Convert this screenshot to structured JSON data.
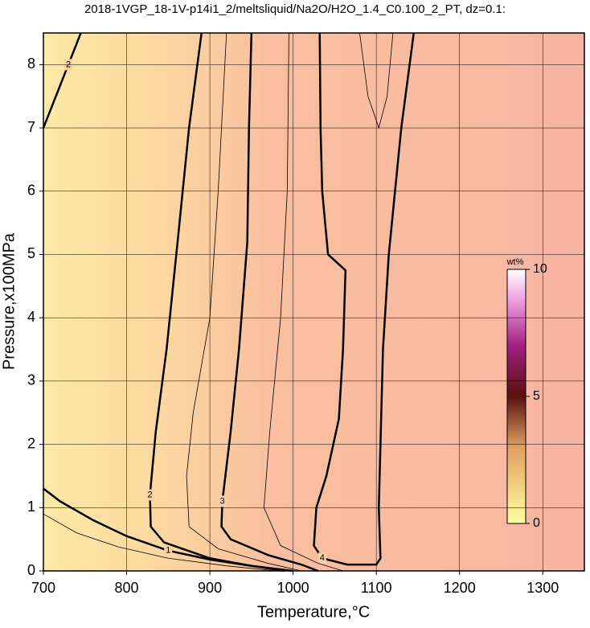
{
  "chart_data": {
    "type": "contour",
    "title": "2018-1VGP_18-1V-p14i1_2/meltsliquid/Na2O/H2O_1.4_C0.100_2_PT, dz=0.1:",
    "x_label": "Temperature,°C",
    "y_label": "Pressure,x100MPa",
    "xlim": [
      700,
      1350
    ],
    "ylim": [
      0,
      8.5
    ],
    "xticks": [
      700,
      800,
      900,
      1000,
      1100,
      1200,
      1300
    ],
    "yticks": [
      0,
      1,
      2,
      3,
      4,
      5,
      6,
      7,
      8
    ],
    "grid": true,
    "contours": [
      {
        "level": 1,
        "bold": true,
        "x": [
          700,
          720,
          760,
          800,
          850,
          900,
          950,
          1000
        ],
        "y": [
          1.3,
          1.1,
          0.8,
          0.55,
          0.32,
          0.18,
          0.08,
          0
        ]
      },
      {
        "level": 2,
        "bold": true,
        "x": [
          700,
          715,
          730,
          745
        ],
        "y": [
          7.0,
          7.5,
          8.0,
          8.5
        ]
      },
      {
        "level": 2,
        "bold": true,
        "x": [
          890,
          875,
          862,
          848,
          835,
          828,
          829,
          845,
          900,
          950,
          990
        ],
        "y": [
          8.5,
          7.0,
          5.3,
          3.5,
          2.2,
          1.2,
          0.7,
          0.45,
          0.2,
          0.08,
          0
        ]
      },
      {
        "level": 3,
        "bold": true,
        "x": [
          950,
          947,
          945,
          935,
          925,
          915,
          914,
          925,
          970,
          1010,
          1030
        ],
        "y": [
          8.5,
          7.0,
          5.2,
          3.5,
          2.2,
          1.1,
          0.7,
          0.5,
          0.25,
          0.1,
          0
        ]
      },
      {
        "level": 4,
        "bold": true,
        "x": [
          1032,
          1033,
          1035,
          1042,
          1063,
          1060,
          1055,
          1040,
          1028,
          1025,
          1035,
          1065,
          1100,
          1105,
          1103,
          1106,
          1108,
          1115,
          1130,
          1145
        ],
        "y": [
          8.5,
          7.0,
          6.0,
          5.0,
          4.75,
          3.5,
          2.4,
          1.5,
          1.0,
          0.4,
          0.2,
          0.1,
          0.1,
          0.2,
          1.0,
          2.5,
          3.5,
          5.0,
          7.0,
          8.5
        ]
      },
      {
        "level": 1.5,
        "bold": false,
        "x": [
          700,
          740,
          790,
          850,
          920,
          980
        ],
        "y": [
          0.9,
          0.6,
          0.38,
          0.2,
          0.08,
          0
        ]
      },
      {
        "level": 2.5,
        "bold": false,
        "x": [
          920,
          910,
          900,
          880,
          872,
          875,
          910,
          970,
          1010
        ],
        "y": [
          8.5,
          6.0,
          4.0,
          2.5,
          1.5,
          0.7,
          0.35,
          0.12,
          0
        ]
      },
      {
        "level": 3.5,
        "bold": false,
        "x": [
          995,
          993,
          985,
          972,
          965,
          985,
          1030,
          1060
        ],
        "y": [
          8.5,
          6.0,
          4.0,
          2.2,
          1.0,
          0.4,
          0.12,
          0
        ]
      },
      {
        "level": 4.1,
        "bold": false,
        "x": [
          1080,
          1090,
          1103,
          1113,
          1120
        ],
        "y": [
          8.5,
          7.5,
          7.0,
          7.5,
          8.5
        ]
      }
    ],
    "colorbar": {
      "label": "wt%",
      "lim": [
        0,
        10
      ],
      "ticks": [
        0,
        5,
        10
      ]
    }
  }
}
